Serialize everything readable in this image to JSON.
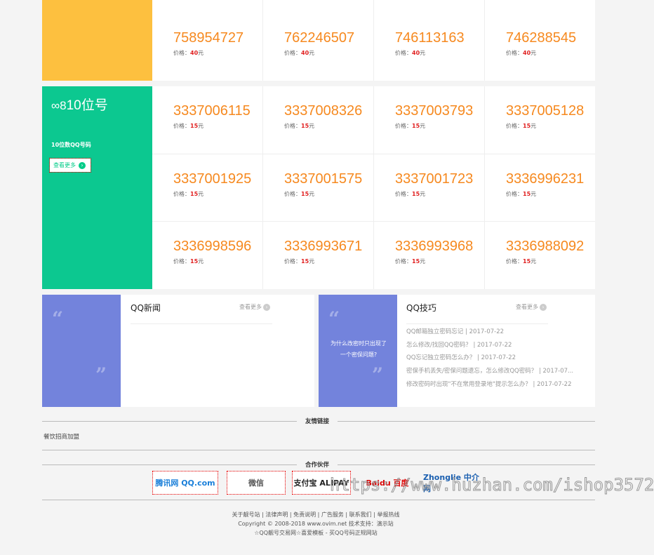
{
  "sections": [
    {
      "color": "#fdc03f",
      "rows": [
        [],
        [
          {
            "num": "758954727",
            "price": "40"
          },
          {
            "num": "762246507",
            "price": "40"
          },
          {
            "num": "746113163",
            "price": "40"
          },
          {
            "num": "746288545",
            "price": "40"
          }
        ]
      ]
    },
    {
      "color": "#0cc890",
      "title": "10位号",
      "desc": "10位数QQ号码",
      "more": "查看更多",
      "rows": [
        [
          {
            "num": "3337006115",
            "price": "15"
          },
          {
            "num": "3337008326",
            "price": "15"
          },
          {
            "num": "3337003793",
            "price": "15"
          },
          {
            "num": "3337005128",
            "price": "15"
          }
        ],
        [
          {
            "num": "3337001925",
            "price": "15"
          },
          {
            "num": "3337001575",
            "price": "15"
          },
          {
            "num": "3337001723",
            "price": "15"
          },
          {
            "num": "3336996231",
            "price": "15"
          }
        ],
        [
          {
            "num": "3336998596",
            "price": "15"
          },
          {
            "num": "3336993671",
            "price": "15"
          },
          {
            "num": "3336993968",
            "price": "15"
          },
          {
            "num": "3336988092",
            "price": "15"
          }
        ]
      ]
    }
  ],
  "price_label": "价格：",
  "price_unit": "元",
  "news": {
    "title": "QQ新闻",
    "more": "查看更多",
    "color": "#7383dc"
  },
  "tips": {
    "title": "QQ技巧",
    "more": "查看更多",
    "quote": "为什么改密时只出现了一个密保问题?",
    "color": "#7383dc",
    "items": [
      "QQ邮箱独立密码忘记 | 2017-07-22",
      "怎么修改/找回QQ密码？ | 2017-07-22",
      "QQ忘记独立密码怎么办？ | 2017-07-22",
      "密保手机丢失/密保问题遗忘，怎么修改QQ密码？ | 2017-07...",
      "修改密码时出现\"不在常用登录地\"提示怎么办？ | 2017-07-22"
    ]
  },
  "friend_links": {
    "title": "友情链接",
    "items": [
      "餐饮招商加盟"
    ]
  },
  "partners": {
    "title": "合作伙伴",
    "logos": [
      "腾讯网 QQ.com",
      "微信",
      "支付宝 ALIPAY",
      "Baidu 百度",
      "Zhonglie 中介网"
    ]
  },
  "watermark": "https://www.huzhan.com/ishop3572",
  "footer": {
    "links": "关于靓号站 | 法律声明 | 免责说明 | 广告服务 | 联系我们 | 举报热线",
    "copyright": "Copyright © 2008-2018 www.ovim.net 技术支持：演示站",
    "slogan": "☆QQ靓号交易网☆喜爱模板 - 买QQ号码正规网站"
  }
}
